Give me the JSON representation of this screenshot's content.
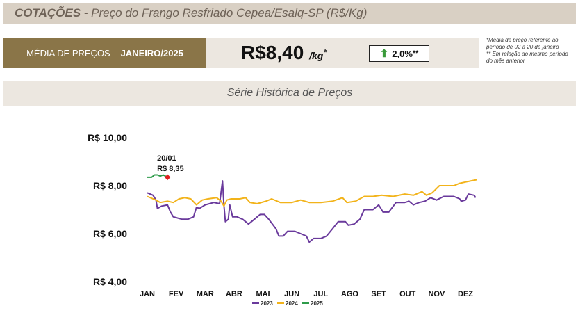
{
  "header": {
    "title_bold": "COTAÇÕES",
    "title_rest": " - Preço do Frango Resfriado Cepea/Esalq-SP (R$/Kg)"
  },
  "avg": {
    "label": "MÉDIA DE PREÇOS – ",
    "period": "JANEIRO/2025"
  },
  "price": {
    "value": "R$8,40",
    "unit": "/kg",
    "unit_mark": "*"
  },
  "change": {
    "value": "2,0%",
    "mark": "**",
    "direction": "up",
    "color": "#3a9a3a"
  },
  "notes": {
    "line1": "*Média de preço referente ao período de 02 a 20 de janeiro",
    "line2": "** Em relação ao mesmo período do mês anterior"
  },
  "series_title": "Série Histórica de Preços",
  "chart_data": {
    "type": "line",
    "x_labels": [
      "JAN",
      "FEV",
      "MAR",
      "ABR",
      "MAI",
      "JUN",
      "JUL",
      "AGO",
      "SET",
      "OUT",
      "NOV",
      "DEZ"
    ],
    "y_ticks": [
      "R$ 10,00",
      "R$ 8,00",
      "R$ 6,00",
      "R$ 4,00"
    ],
    "y_tick_values": [
      10,
      8,
      6,
      4
    ],
    "ylim": [
      4,
      10
    ],
    "annotation": {
      "date": "20/01",
      "value_text": "R$ 8,35",
      "month": 0.7,
      "value": 8.35
    },
    "legend_position": "bottom-center",
    "series": [
      {
        "name": "2023",
        "color": "#6a3a9c",
        "points": [
          [
            0,
            7.7
          ],
          [
            0.2,
            7.6
          ],
          [
            0.3,
            7.4
          ],
          [
            0.35,
            7.05
          ],
          [
            0.5,
            7.15
          ],
          [
            0.7,
            7.2
          ],
          [
            0.8,
            6.9
          ],
          [
            0.9,
            6.7
          ],
          [
            1.2,
            6.6
          ],
          [
            1.4,
            6.6
          ],
          [
            1.6,
            6.7
          ],
          [
            1.7,
            7.1
          ],
          [
            1.8,
            7.05
          ],
          [
            2.0,
            7.2
          ],
          [
            2.3,
            7.3
          ],
          [
            2.5,
            7.25
          ],
          [
            2.6,
            8.2
          ],
          [
            2.65,
            7.2
          ],
          [
            2.7,
            6.5
          ],
          [
            2.8,
            6.6
          ],
          [
            2.85,
            7.2
          ],
          [
            2.95,
            6.7
          ],
          [
            3.1,
            6.7
          ],
          [
            3.3,
            6.6
          ],
          [
            3.5,
            6.4
          ],
          [
            3.7,
            6.6
          ],
          [
            3.9,
            6.8
          ],
          [
            4.05,
            6.8
          ],
          [
            4.2,
            6.6
          ],
          [
            4.45,
            6.2
          ],
          [
            4.55,
            5.9
          ],
          [
            4.7,
            5.9
          ],
          [
            4.85,
            6.1
          ],
          [
            5.0,
            6.1
          ],
          [
            5.1,
            6.1
          ],
          [
            5.3,
            6.0
          ],
          [
            5.5,
            5.9
          ],
          [
            5.6,
            5.65
          ],
          [
            5.75,
            5.8
          ],
          [
            6.0,
            5.8
          ],
          [
            6.2,
            5.9
          ],
          [
            6.4,
            6.2
          ],
          [
            6.6,
            6.5
          ],
          [
            6.85,
            6.5
          ],
          [
            6.95,
            6.35
          ],
          [
            7.15,
            6.4
          ],
          [
            7.35,
            6.6
          ],
          [
            7.5,
            7.0
          ],
          [
            7.8,
            7.0
          ],
          [
            8.0,
            7.2
          ],
          [
            8.15,
            6.9
          ],
          [
            8.35,
            6.9
          ],
          [
            8.6,
            7.3
          ],
          [
            8.9,
            7.3
          ],
          [
            9.05,
            7.35
          ],
          [
            9.2,
            7.2
          ],
          [
            9.4,
            7.3
          ],
          [
            9.6,
            7.35
          ],
          [
            9.8,
            7.5
          ],
          [
            10.0,
            7.4
          ],
          [
            10.25,
            7.55
          ],
          [
            10.6,
            7.55
          ],
          [
            10.8,
            7.45
          ],
          [
            10.85,
            7.35
          ],
          [
            11.0,
            7.4
          ],
          [
            11.1,
            7.65
          ],
          [
            11.3,
            7.6
          ],
          [
            11.35,
            7.5
          ]
        ]
      },
      {
        "name": "2024",
        "color": "#f2b31a",
        "points": [
          [
            0,
            7.55
          ],
          [
            0.3,
            7.4
          ],
          [
            0.45,
            7.3
          ],
          [
            0.7,
            7.35
          ],
          [
            0.9,
            7.3
          ],
          [
            1.1,
            7.45
          ],
          [
            1.3,
            7.5
          ],
          [
            1.5,
            7.45
          ],
          [
            1.7,
            7.2
          ],
          [
            1.9,
            7.4
          ],
          [
            2.1,
            7.45
          ],
          [
            2.4,
            7.5
          ],
          [
            2.55,
            7.35
          ],
          [
            2.65,
            7.15
          ],
          [
            2.75,
            7.4
          ],
          [
            2.9,
            7.45
          ],
          [
            3.2,
            7.45
          ],
          [
            3.4,
            7.5
          ],
          [
            3.55,
            7.3
          ],
          [
            3.8,
            7.25
          ],
          [
            4.1,
            7.35
          ],
          [
            4.3,
            7.45
          ],
          [
            4.6,
            7.3
          ],
          [
            5.0,
            7.3
          ],
          [
            5.3,
            7.4
          ],
          [
            5.6,
            7.3
          ],
          [
            6.0,
            7.3
          ],
          [
            6.4,
            7.35
          ],
          [
            6.75,
            7.5
          ],
          [
            6.9,
            7.3
          ],
          [
            7.2,
            7.35
          ],
          [
            7.5,
            7.55
          ],
          [
            7.8,
            7.55
          ],
          [
            8.1,
            7.6
          ],
          [
            8.5,
            7.55
          ],
          [
            8.9,
            7.65
          ],
          [
            9.2,
            7.6
          ],
          [
            9.5,
            7.75
          ],
          [
            9.65,
            7.6
          ],
          [
            9.85,
            7.7
          ],
          [
            10.1,
            8.0
          ],
          [
            10.4,
            8.0
          ],
          [
            10.6,
            8.0
          ],
          [
            10.8,
            8.1
          ],
          [
            11.0,
            8.15
          ],
          [
            11.2,
            8.2
          ],
          [
            11.4,
            8.25
          ]
        ]
      },
      {
        "name": "2025",
        "color": "#2e9b4a",
        "points": [
          [
            0,
            8.35
          ],
          [
            0.15,
            8.35
          ],
          [
            0.25,
            8.45
          ],
          [
            0.35,
            8.45
          ],
          [
            0.45,
            8.4
          ],
          [
            0.55,
            8.45
          ],
          [
            0.7,
            8.35
          ]
        ]
      }
    ]
  }
}
